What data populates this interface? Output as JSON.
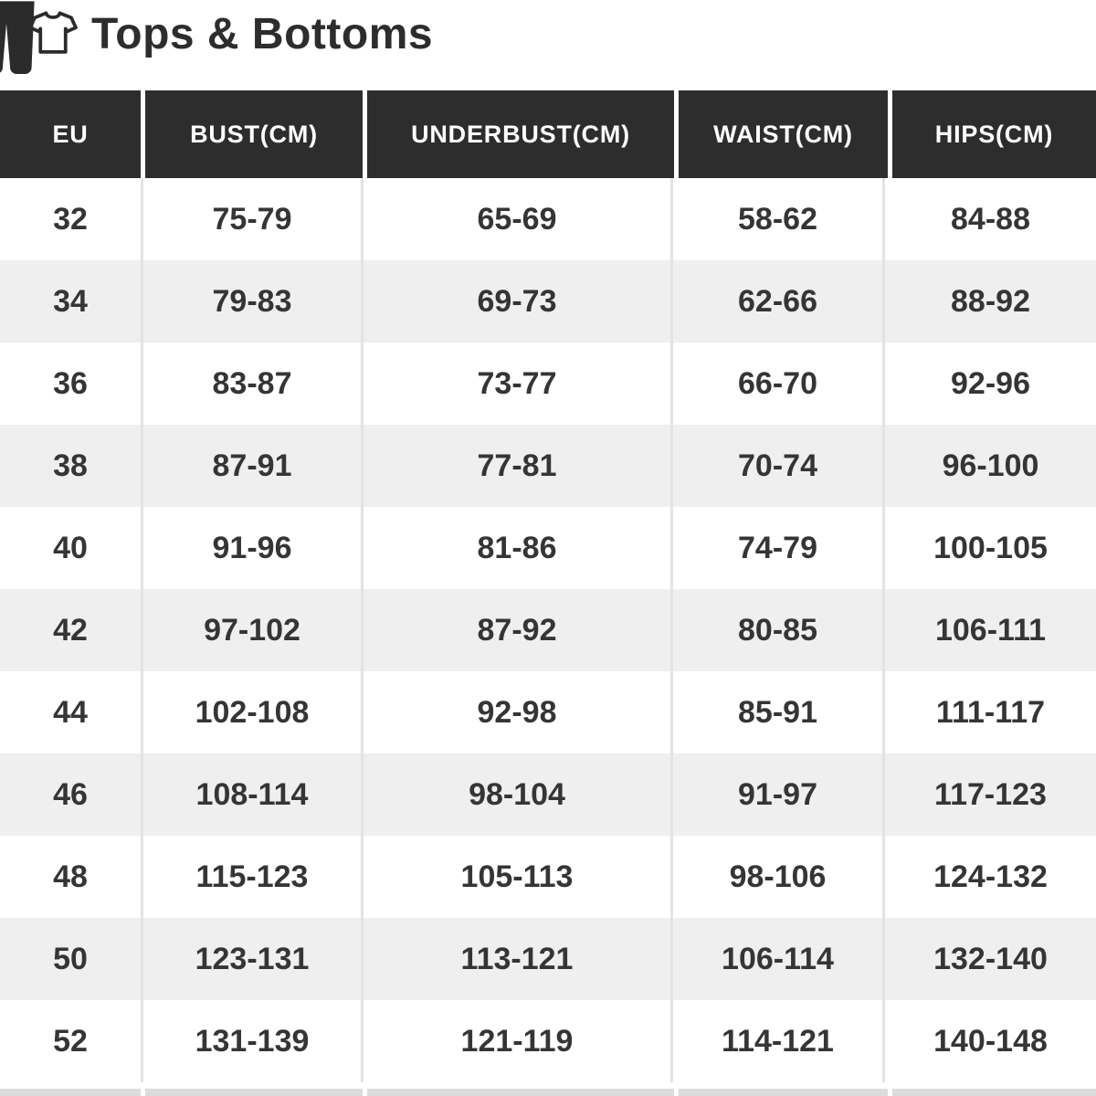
{
  "title_bar": {
    "title": "Tops & Bottoms",
    "icons": [
      "pants-icon",
      "tshirt-icon"
    ]
  },
  "colors": {
    "header_bg": "#2d2d2d",
    "header_text": "#ffffff",
    "row_white": "#ffffff",
    "row_alt": "#efefef",
    "cell_text": "#353535",
    "divider": "#e3e3e3",
    "title_text": "#2d2d2d",
    "icon_color": "#2b2b2b",
    "bottom_strip": "#dcdcdc"
  },
  "chart_data": {
    "type": "table",
    "title": "Tops & Bottoms",
    "columns": [
      "EU",
      "BUST(CM)",
      "UNDERBUST(CM)",
      "WAIST(CM)",
      "HIPS(CM)"
    ],
    "rows": [
      [
        "32",
        "75-79",
        "65-69",
        "58-62",
        "84-88"
      ],
      [
        "34",
        "79-83",
        "69-73",
        "62-66",
        "88-92"
      ],
      [
        "36",
        "83-87",
        "73-77",
        "66-70",
        "92-96"
      ],
      [
        "38",
        "87-91",
        "77-81",
        "70-74",
        "96-100"
      ],
      [
        "40",
        "91-96",
        "81-86",
        "74-79",
        "100-105"
      ],
      [
        "42",
        "97-102",
        "87-92",
        "80-85",
        "106-111"
      ],
      [
        "44",
        "102-108",
        "92-98",
        "85-91",
        "111-117"
      ],
      [
        "46",
        "108-114",
        "98-104",
        "91-97",
        "117-123"
      ],
      [
        "48",
        "115-123",
        "105-113",
        "98-106",
        "124-132"
      ],
      [
        "50",
        "123-131",
        "113-121",
        "106-114",
        "132-140"
      ],
      [
        "52",
        "131-139",
        "121-119",
        "114-121",
        "140-148"
      ]
    ]
  }
}
